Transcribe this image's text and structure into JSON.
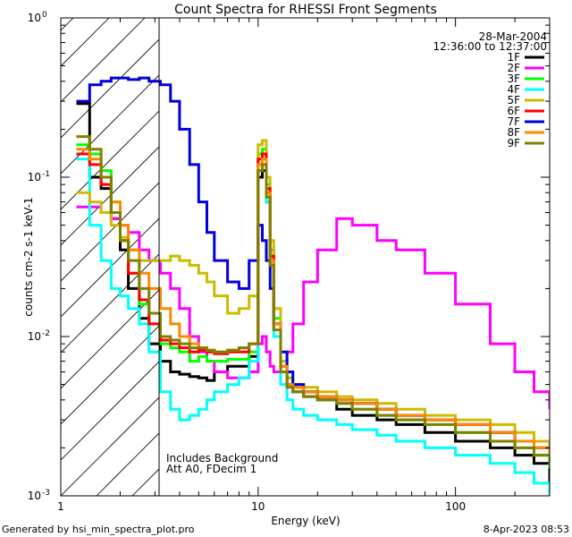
{
  "footer": {
    "generated_by": "Generated by hsi_min_spectra_plot.pro",
    "date": "8-Apr-2023 08:53"
  },
  "chart_data": {
    "type": "line",
    "title": "Count Spectra for RHESSI Front Segments",
    "xlabel": "Energy (keV)",
    "ylabel": "counts cm-2 s-1 keV-1",
    "xscale": "log",
    "yscale": "log",
    "xlim": [
      1.0,
      300.0
    ],
    "ylim": [
      0.001,
      1.0
    ],
    "x_tick_labels": [
      {
        "value": 1,
        "label": "1"
      },
      {
        "value": 10,
        "label": "10"
      },
      {
        "value": 100,
        "label": "100"
      }
    ],
    "y_tick_labels": [
      {
        "value": 1,
        "label": "10",
        "exp": "0"
      },
      {
        "value": 0.1,
        "label": "10",
        "exp": "-1"
      },
      {
        "value": 0.01,
        "label": "10",
        "exp": "-2"
      },
      {
        "value": 0.001,
        "label": "10",
        "exp": "-3"
      }
    ],
    "date_text": "28-Mar-2004",
    "time_text": "12:36:00 to 12:37:00",
    "annotations": [
      "Includes Background",
      "Att A0, FDecim 1"
    ],
    "shaded_region_xmax_kev": 3.0,
    "legend_position": "top-right",
    "series": [
      {
        "name": "1F",
        "color": "#000000",
        "x": [
          1.2,
          1.4,
          1.6,
          1.8,
          2.0,
          2.2,
          2.5,
          2.8,
          3.2,
          3.6,
          4.0,
          4.5,
          5.0,
          5.5,
          6.0,
          7.0,
          8.0,
          9.0,
          10.0,
          10.5,
          11.0,
          11.5,
          12.0,
          13.0,
          14.0,
          15.0,
          17.0,
          20.0,
          25.0,
          30.0,
          40.0,
          50.0,
          70.0,
          100.0,
          150.0,
          200.0,
          250.0,
          300.0
        ],
        "y": [
          0.29,
          0.1,
          0.085,
          0.055,
          0.035,
          0.02,
          0.013,
          0.009,
          0.007,
          0.006,
          0.0058,
          0.0056,
          0.0055,
          0.0053,
          0.006,
          0.0065,
          0.0065,
          0.0075,
          0.1,
          0.11,
          0.07,
          0.03,
          0.012,
          0.006,
          0.005,
          0.0045,
          0.0042,
          0.004,
          0.0035,
          0.0032,
          0.003,
          0.0028,
          0.0025,
          0.0022,
          0.002,
          0.0018,
          0.0016,
          0.0012
        ]
      },
      {
        "name": "2F",
        "color": "#ff00ff",
        "x": [
          1.2,
          1.4,
          1.6,
          1.8,
          2.0,
          2.2,
          2.5,
          2.8,
          3.2,
          3.6,
          4.0,
          4.5,
          5.0,
          5.5,
          6.0,
          7.0,
          8.0,
          9.0,
          10.0,
          10.5,
          11.0,
          11.5,
          12.0,
          13.0,
          14.0,
          15.0,
          17.0,
          20.0,
          25.0,
          30.0,
          40.0,
          50.0,
          70.0,
          100.0,
          150.0,
          200.0,
          250.0,
          300.0
        ],
        "y": [
          0.065,
          0.065,
          0.06,
          0.055,
          0.05,
          0.045,
          0.035,
          0.03,
          0.025,
          0.02,
          0.015,
          0.01,
          0.008,
          0.007,
          0.006,
          0.0055,
          0.0055,
          0.006,
          0.009,
          0.01,
          0.008,
          0.0065,
          0.006,
          0.0065,
          0.008,
          0.012,
          0.022,
          0.035,
          0.055,
          0.05,
          0.04,
          0.035,
          0.025,
          0.016,
          0.009,
          0.006,
          0.0045,
          0.0035
        ]
      },
      {
        "name": "3F",
        "color": "#00ff00",
        "x": [
          1.2,
          1.4,
          1.6,
          1.8,
          2.0,
          2.2,
          2.5,
          2.8,
          3.2,
          3.6,
          4.0,
          4.5,
          5.0,
          5.5,
          6.0,
          7.0,
          8.0,
          9.0,
          10.0,
          10.5,
          11.0,
          11.5,
          12.0,
          13.0,
          14.0,
          15.0,
          17.0,
          20.0,
          25.0,
          30.0,
          40.0,
          50.0,
          70.0,
          100.0,
          150.0,
          200.0,
          250.0,
          300.0
        ],
        "y": [
          0.16,
          0.14,
          0.11,
          0.07,
          0.04,
          0.025,
          0.016,
          0.012,
          0.009,
          0.0085,
          0.008,
          0.007,
          0.0075,
          0.007,
          0.007,
          0.0072,
          0.0072,
          0.008,
          0.14,
          0.15,
          0.09,
          0.035,
          0.013,
          0.007,
          0.0055,
          0.005,
          0.0045,
          0.0042,
          0.0038,
          0.0035,
          0.0032,
          0.003,
          0.0028,
          0.0025,
          0.0022,
          0.002,
          0.0018,
          0.0015
        ]
      },
      {
        "name": "4F",
        "color": "#00ffff",
        "x": [
          1.2,
          1.4,
          1.6,
          1.8,
          2.0,
          2.2,
          2.5,
          2.8,
          3.2,
          3.6,
          4.0,
          4.5,
          5.0,
          5.5,
          6.0,
          7.0,
          8.0,
          9.0,
          10.0,
          10.5,
          11.0,
          11.5,
          12.0,
          13.0,
          14.0,
          15.0,
          17.0,
          20.0,
          25.0,
          30.0,
          40.0,
          50.0,
          70.0,
          100.0,
          150.0,
          200.0,
          250.0,
          300.0
        ],
        "y": [
          0.13,
          0.05,
          0.03,
          0.02,
          0.018,
          0.015,
          0.012,
          0.008,
          0.0045,
          0.0035,
          0.003,
          0.0032,
          0.0035,
          0.004,
          0.0045,
          0.005,
          0.0055,
          0.007,
          0.11,
          0.12,
          0.07,
          0.028,
          0.01,
          0.005,
          0.004,
          0.0035,
          0.0032,
          0.003,
          0.0028,
          0.0026,
          0.0024,
          0.0022,
          0.002,
          0.0018,
          0.0016,
          0.0014,
          0.0012,
          0.001
        ]
      },
      {
        "name": "5F",
        "color": "#ccbb00",
        "x": [
          1.2,
          1.4,
          1.6,
          1.8,
          2.0,
          2.2,
          2.5,
          2.8,
          3.2,
          3.6,
          4.0,
          4.5,
          5.0,
          5.5,
          6.0,
          7.0,
          8.0,
          9.0,
          10.0,
          10.5,
          11.0,
          11.5,
          12.0,
          13.0,
          14.0,
          15.0,
          17.0,
          20.0,
          25.0,
          30.0,
          40.0,
          50.0,
          70.0,
          100.0,
          150.0,
          200.0,
          250.0,
          300.0
        ],
        "y": [
          0.08,
          0.07,
          0.06,
          0.05,
          0.042,
          0.035,
          0.03,
          0.03,
          0.03,
          0.032,
          0.03,
          0.028,
          0.025,
          0.022,
          0.018,
          0.014,
          0.015,
          0.018,
          0.16,
          0.17,
          0.1,
          0.04,
          0.015,
          0.007,
          0.0055,
          0.005,
          0.0048,
          0.0045,
          0.0042,
          0.004,
          0.0038,
          0.0035,
          0.0032,
          0.003,
          0.0028,
          0.0025,
          0.0022,
          0.002
        ]
      },
      {
        "name": "6F",
        "color": "#ff0000",
        "x": [
          1.2,
          1.4,
          1.6,
          1.8,
          2.0,
          2.2,
          2.5,
          2.8,
          3.2,
          3.6,
          4.0,
          4.5,
          5.0,
          5.5,
          6.0,
          7.0,
          8.0,
          9.0,
          10.0,
          10.5,
          11.0,
          11.5,
          12.0,
          13.0,
          14.0,
          15.0,
          17.0,
          20.0,
          25.0,
          30.0,
          40.0,
          50.0,
          70.0,
          100.0,
          150.0,
          200.0,
          250.0,
          300.0
        ],
        "y": [
          0.14,
          0.12,
          0.09,
          0.06,
          0.04,
          0.025,
          0.017,
          0.012,
          0.0095,
          0.009,
          0.0085,
          0.008,
          0.0082,
          0.008,
          0.0078,
          0.008,
          0.008,
          0.009,
          0.13,
          0.14,
          0.085,
          0.032,
          0.012,
          0.0065,
          0.005,
          0.0048,
          0.0045,
          0.0042,
          0.004,
          0.0038,
          0.0035,
          0.0032,
          0.003,
          0.0028,
          0.0025,
          0.0022,
          0.002,
          0.0018
        ]
      },
      {
        "name": "7F",
        "color": "#0000dd",
        "x": [
          1.2,
          1.4,
          1.6,
          1.8,
          2.0,
          2.2,
          2.5,
          2.8,
          3.2,
          3.6,
          4.0,
          4.5,
          5.0,
          5.5,
          6.0,
          7.0,
          8.0,
          9.0,
          10.0,
          10.5,
          11.0,
          11.5,
          12.0,
          13.0,
          14.0,
          15.0,
          17.0,
          20.0,
          25.0,
          30.0,
          40.0,
          50.0,
          70.0,
          100.0,
          150.0,
          200.0,
          250.0,
          300.0
        ],
        "y": [
          0.3,
          0.38,
          0.4,
          0.42,
          0.42,
          0.41,
          0.42,
          0.4,
          0.38,
          0.3,
          0.2,
          0.12,
          0.07,
          0.045,
          0.03,
          0.022,
          0.02,
          0.03,
          0.05,
          0.04,
          0.03,
          0.02,
          0.012,
          0.008,
          0.006,
          0.005,
          0.0045,
          0.0042,
          0.004,
          0.0038,
          0.0035,
          0.0032,
          0.003,
          0.0028,
          0.0025,
          0.0022,
          0.002,
          0.0018
        ]
      },
      {
        "name": "8F",
        "color": "#ff8800",
        "x": [
          1.2,
          1.4,
          1.6,
          1.8,
          2.0,
          2.2,
          2.5,
          2.8,
          3.2,
          3.6,
          4.0,
          4.5,
          5.0,
          5.5,
          6.0,
          7.0,
          8.0,
          9.0,
          10.0,
          10.5,
          11.0,
          11.5,
          12.0,
          13.0,
          14.0,
          15.0,
          17.0,
          20.0,
          25.0,
          30.0,
          40.0,
          50.0,
          70.0,
          100.0,
          150.0,
          200.0,
          250.0,
          300.0
        ],
        "y": [
          0.15,
          0.13,
          0.1,
          0.07,
          0.05,
          0.035,
          0.025,
          0.02,
          0.015,
          0.012,
          0.01,
          0.009,
          0.0085,
          0.0082,
          0.008,
          0.0082,
          0.0085,
          0.009,
          0.12,
          0.13,
          0.08,
          0.03,
          0.012,
          0.0065,
          0.005,
          0.0048,
          0.0045,
          0.0042,
          0.004,
          0.0038,
          0.0035,
          0.0032,
          0.003,
          0.0028,
          0.0025,
          0.0022,
          0.002,
          0.0018
        ]
      },
      {
        "name": "9F",
        "color": "#808000",
        "x": [
          1.2,
          1.4,
          1.6,
          1.8,
          2.0,
          2.2,
          2.5,
          2.8,
          3.2,
          3.6,
          4.0,
          4.5,
          5.0,
          5.5,
          6.0,
          7.0,
          8.0,
          9.0,
          10.0,
          10.5,
          11.0,
          11.5,
          12.0,
          13.0,
          14.0,
          15.0,
          17.0,
          20.0,
          25.0,
          30.0,
          40.0,
          50.0,
          70.0,
          100.0,
          150.0,
          200.0,
          250.0,
          300.0
        ],
        "y": [
          0.18,
          0.15,
          0.1,
          0.06,
          0.04,
          0.03,
          0.02,
          0.014,
          0.01,
          0.0095,
          0.009,
          0.0085,
          0.0085,
          0.0082,
          0.008,
          0.0082,
          0.0085,
          0.009,
          0.11,
          0.12,
          0.075,
          0.028,
          0.011,
          0.006,
          0.0048,
          0.0045,
          0.0042,
          0.004,
          0.0038,
          0.0035,
          0.0032,
          0.003,
          0.0028,
          0.0025,
          0.0022,
          0.002,
          0.0018,
          0.0016
        ]
      }
    ]
  }
}
